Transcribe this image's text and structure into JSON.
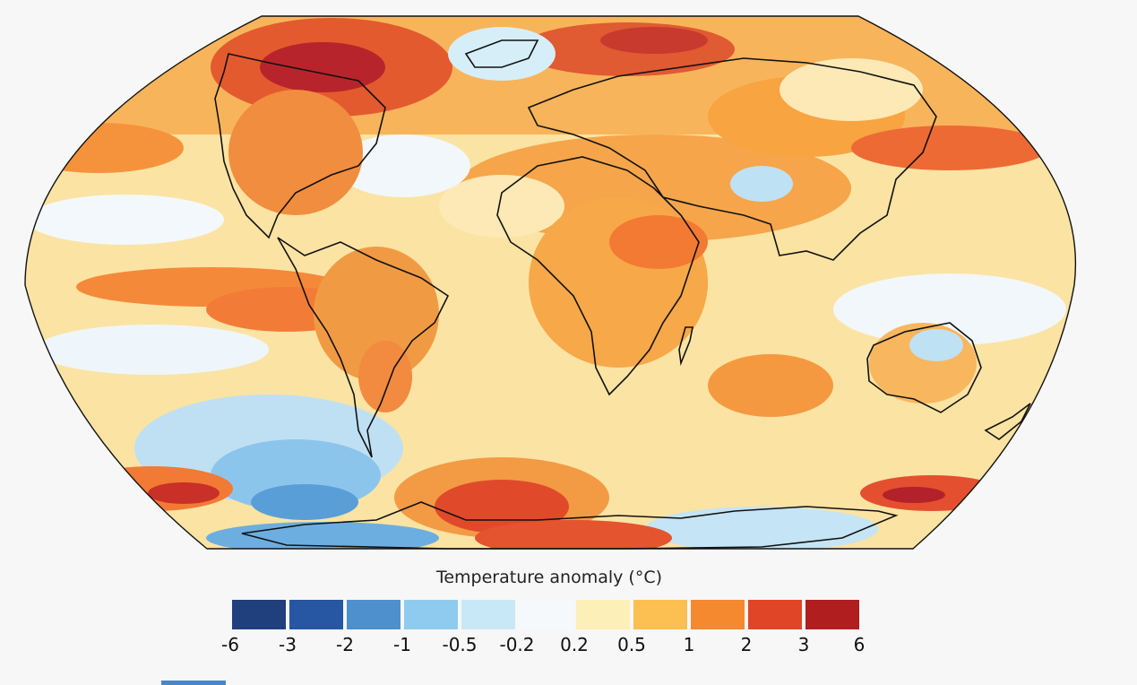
{
  "legend": {
    "title": "Temperature anomaly (°C)",
    "ticks": [
      "-6",
      "-3",
      "-2",
      "-1",
      "-0.5",
      "-0.2",
      "0.2",
      "0.5",
      "1",
      "2",
      "3",
      "6"
    ],
    "colors": [
      "#203f7d",
      "#2756a3",
      "#4e90cd",
      "#8fcbef",
      "#c8e8f8",
      "#f5f9fc",
      "#fdefb8",
      "#fbbf52",
      "#f5892f",
      "#e04527",
      "#b11e20"
    ]
  },
  "map": {
    "projection": "Robinson",
    "ocean_base": "#fbe7a6",
    "outline": "#111111"
  }
}
